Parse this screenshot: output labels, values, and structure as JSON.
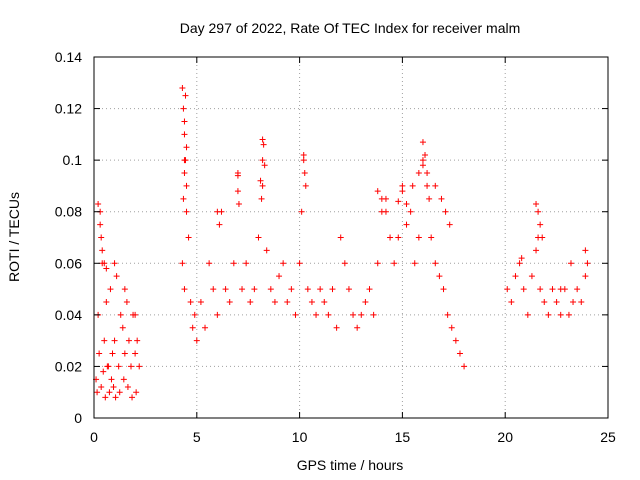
{
  "chart_data": {
    "type": "scatter",
    "title": "Day 297 of 2022, Rate Of TEC Index for receiver malm",
    "xlabel": "GPS time / hours",
    "ylabel": "ROTI / TECUs",
    "xlim": [
      0,
      25
    ],
    "ylim": [
      0,
      0.14
    ],
    "xticks": [
      0,
      5,
      10,
      15,
      20,
      25
    ],
    "yticks": [
      0,
      0.02,
      0.04,
      0.06,
      0.08,
      0.1,
      0.12,
      0.14
    ],
    "xtick_labels": [
      "0",
      "5",
      "10",
      "15",
      "20",
      "25"
    ],
    "ytick_labels": [
      "0",
      "0.02",
      "0.04",
      "0.06",
      "0.08",
      "0.1",
      "0.12",
      "0.14"
    ],
    "grid": true,
    "marker": "+",
    "color": "#ff0000",
    "series": [
      {
        "x": [
          0.1,
          0.2,
          0.3,
          0.4,
          0.5,
          0.6,
          0.7,
          0.8,
          0.9,
          1.0,
          1.1,
          1.2,
          1.3,
          1.4,
          1.5,
          1.6,
          1.7,
          1.8,
          1.9,
          2.0,
          2.1,
          2.2,
          0.15,
          0.25,
          0.35,
          0.45,
          0.55,
          0.65,
          0.75,
          0.85,
          0.95,
          1.05,
          1.25,
          1.45,
          1.65,
          1.85,
          2.05,
          0.3,
          0.35,
          0.4,
          0.5,
          0.2,
          0.6,
          1.0,
          1.5,
          2.0,
          4.3,
          4.4,
          4.5,
          4.6,
          4.7,
          4.8,
          4.9,
          5.0,
          5.2,
          5.4,
          5.6,
          5.8,
          6.0,
          6.2,
          6.4,
          6.6,
          6.8,
          7.0,
          7.2,
          7.4,
          7.6,
          7.8,
          8.0,
          8.2,
          8.4,
          8.6,
          8.8,
          9.0,
          9.2,
          9.4,
          9.6,
          9.8,
          10.0,
          10.2,
          10.4,
          10.6,
          10.8,
          11.0,
          11.2,
          11.4,
          11.6,
          11.8,
          12.0,
          12.2,
          12.4,
          12.6,
          12.8,
          13.0,
          13.2,
          13.4,
          13.6,
          13.8,
          14.0,
          14.2,
          14.4,
          14.6,
          14.8,
          15.0,
          15.2,
          15.4,
          15.6,
          15.8,
          16.0,
          16.2,
          16.4,
          16.6,
          16.8,
          17.0,
          17.2,
          17.4,
          17.6,
          17.8,
          18.0,
          4.3,
          4.35,
          4.4,
          4.45,
          4.5,
          4.4,
          4.45,
          4.5,
          4.4,
          4.35,
          4.4,
          6.0,
          6.1,
          7.0,
          7.05,
          7.0,
          8.2,
          8.25,
          8.3,
          8.2,
          8.1,
          8.15,
          10.2,
          10.25,
          10.3,
          10.1,
          13.8,
          14.0,
          14.2,
          14.8,
          15.0,
          15.2,
          15.5,
          15.8,
          16.0,
          16.1,
          16.2,
          16.0,
          16.3,
          16.6,
          16.9,
          17.1,
          17.3,
          20.1,
          20.3,
          20.5,
          20.7,
          20.9,
          21.1,
          21.3,
          21.5,
          21.7,
          21.9,
          22.1,
          22.3,
          22.5,
          22.7,
          22.9,
          23.1,
          23.3,
          23.5,
          23.7,
          23.9,
          21.5,
          21.6,
          21.7,
          21.6,
          21.8,
          20.8,
          22.7,
          23.2,
          23.9,
          24.0
        ],
        "y": [
          0.015,
          0.04,
          0.08,
          0.06,
          0.03,
          0.045,
          0.02,
          0.05,
          0.025,
          0.03,
          0.055,
          0.02,
          0.04,
          0.035,
          0.025,
          0.045,
          0.03,
          0.02,
          0.04,
          0.025,
          0.03,
          0.02,
          0.01,
          0.025,
          0.012,
          0.018,
          0.008,
          0.02,
          0.01,
          0.015,
          0.012,
          0.008,
          0.01,
          0.015,
          0.012,
          0.008,
          0.01,
          0.075,
          0.07,
          0.065,
          0.06,
          0.083,
          0.058,
          0.06,
          0.05,
          0.04,
          0.06,
          0.05,
          0.08,
          0.07,
          0.045,
          0.035,
          0.04,
          0.03,
          0.045,
          0.035,
          0.06,
          0.05,
          0.04,
          0.08,
          0.05,
          0.045,
          0.06,
          0.095,
          0.05,
          0.06,
          0.045,
          0.05,
          0.07,
          0.09,
          0.065,
          0.05,
          0.045,
          0.055,
          0.06,
          0.045,
          0.05,
          0.04,
          0.06,
          0.1,
          0.05,
          0.045,
          0.04,
          0.05,
          0.045,
          0.04,
          0.05,
          0.035,
          0.07,
          0.06,
          0.05,
          0.04,
          0.035,
          0.04,
          0.045,
          0.05,
          0.04,
          0.06,
          0.08,
          0.085,
          0.07,
          0.06,
          0.07,
          0.09,
          0.075,
          0.08,
          0.06,
          0.07,
          0.1,
          0.09,
          0.07,
          0.06,
          0.055,
          0.05,
          0.04,
          0.035,
          0.03,
          0.025,
          0.02,
          0.128,
          0.12,
          0.11,
          0.1,
          0.09,
          0.115,
          0.125,
          0.105,
          0.095,
          0.085,
          0.1,
          0.08,
          0.075,
          0.094,
          0.083,
          0.088,
          0.108,
          0.106,
          0.098,
          0.1,
          0.092,
          0.085,
          0.102,
          0.095,
          0.09,
          0.08,
          0.088,
          0.085,
          0.08,
          0.084,
          0.088,
          0.083,
          0.09,
          0.095,
          0.107,
          0.102,
          0.095,
          0.098,
          0.085,
          0.09,
          0.085,
          0.08,
          0.075,
          0.05,
          0.045,
          0.055,
          0.06,
          0.05,
          0.04,
          0.055,
          0.065,
          0.05,
          0.045,
          0.04,
          0.05,
          0.045,
          0.04,
          0.05,
          0.04,
          0.045,
          0.05,
          0.045,
          0.055,
          0.083,
          0.08,
          0.075,
          0.07,
          0.07,
          0.062,
          0.05,
          0.06,
          0.065,
          0.06
        ]
      }
    ]
  }
}
